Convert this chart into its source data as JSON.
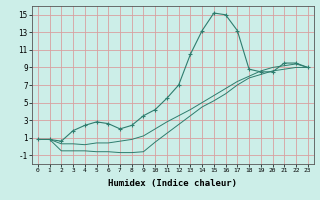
{
  "xlabel": "Humidex (Indice chaleur)",
  "ylabel": "",
  "bg_color": "#cceee8",
  "grid_color": "#d8a0a0",
  "line_color": "#2e7d6e",
  "xlim": [
    -0.5,
    23.5
  ],
  "ylim": [
    -2.0,
    16.0
  ],
  "yticks": [
    -1,
    1,
    3,
    5,
    7,
    9,
    11,
    13,
    15
  ],
  "xtick_labels": [
    "0",
    "1",
    "2",
    "3",
    "4",
    "5",
    "6",
    "7",
    "8",
    "9",
    "10",
    "11",
    "12",
    "13",
    "14",
    "15",
    "16",
    "17",
    "18",
    "19",
    "20",
    "21",
    "22",
    "23"
  ],
  "xtick_vals": [
    0,
    1,
    2,
    3,
    4,
    5,
    6,
    7,
    8,
    9,
    10,
    11,
    12,
    13,
    14,
    15,
    16,
    17,
    18,
    19,
    20,
    21,
    22,
    23
  ],
  "line1_x": [
    0,
    1,
    2,
    3,
    4,
    5,
    6,
    7,
    8,
    9,
    10,
    11,
    12,
    13,
    14,
    15,
    16,
    17,
    18,
    19,
    20,
    21,
    22,
    23
  ],
  "line1_y": [
    0.8,
    0.8,
    0.6,
    1.8,
    2.4,
    2.8,
    2.6,
    2.0,
    2.4,
    3.5,
    4.2,
    5.5,
    7.0,
    10.5,
    13.2,
    15.2,
    15.0,
    13.2,
    8.8,
    8.5,
    8.5,
    9.5,
    9.5,
    9.0
  ],
  "line2_x": [
    0,
    1,
    2,
    3,
    4,
    5,
    6,
    7,
    8,
    9,
    10,
    11,
    12,
    13,
    14,
    15,
    16,
    17,
    18,
    19,
    20,
    21,
    22,
    23
  ],
  "line2_y": [
    0.8,
    0.8,
    0.3,
    0.3,
    0.2,
    0.4,
    0.4,
    0.6,
    0.8,
    1.2,
    2.0,
    2.8,
    3.5,
    4.2,
    5.0,
    5.8,
    6.6,
    7.4,
    8.0,
    8.6,
    9.0,
    9.2,
    9.4,
    9.0
  ],
  "line3_x": [
    0,
    1,
    2,
    3,
    4,
    5,
    6,
    7,
    8,
    9,
    10,
    11,
    12,
    13,
    14,
    15,
    16,
    17,
    18,
    19,
    20,
    21,
    22,
    23
  ],
  "line3_y": [
    0.8,
    0.8,
    -0.5,
    -0.5,
    -0.5,
    -0.6,
    -0.6,
    -0.7,
    -0.7,
    -0.6,
    0.5,
    1.5,
    2.5,
    3.5,
    4.5,
    5.2,
    6.0,
    7.0,
    7.8,
    8.2,
    8.6,
    8.8,
    9.0,
    9.0
  ]
}
